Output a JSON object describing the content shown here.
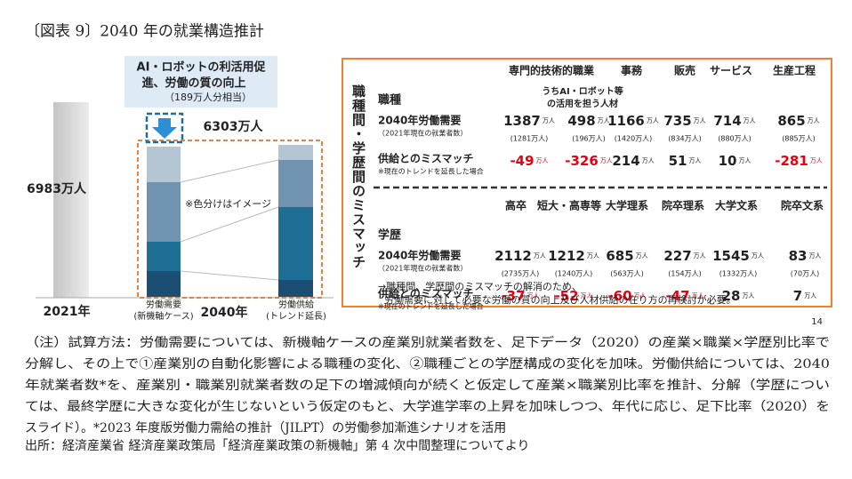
{
  "title": "〔図表 9〕2040 年の就業構造推計",
  "left_chart": {
    "callout": [
      "AI・ロボットの利活用促",
      "進、労働の質の向上"
    ],
    "callout_note": "（189万人分相当）",
    "total_2021": "6983万人",
    "total_2040": "6303万人",
    "color_note": "※色分けはイメージ",
    "year_2021": "2021年",
    "year_2040": "2040年",
    "demand_label": [
      "労働需要",
      "(新機軸ケース)"
    ],
    "supply_label": [
      "労働供給",
      "(トレンド延長)"
    ]
  },
  "side_label": "職種間・学歴間のミスマッチ",
  "table": {
    "unit": "万人",
    "occupation": {
      "label": "職種",
      "headers": [
        "専門的技術的職業",
        "事務",
        "販売",
        "サービス",
        "生産工程"
      ],
      "subheader": [
        "うちAI・ロボット等",
        "の活用を担う人材"
      ],
      "demand_label": "2040年労働需要",
      "demand_sublabel": "（2021年現在の就業者数）",
      "demand": [
        "1387",
        "498",
        "1166",
        "735",
        "714",
        "865"
      ],
      "current": [
        "(1281万人)",
        "(196万人)",
        "(1420万人)",
        "(834万人)",
        "(880万人)",
        "(885万人)"
      ],
      "mismatch_label": "供給とのミスマッチ",
      "mismatch_sublabel": "※現在のトレンドを延長した場合",
      "mismatch": [
        "-49",
        "-326",
        "214",
        "51",
        "10",
        "-281"
      ]
    },
    "education": {
      "label": "学歴",
      "headers": [
        "高卒",
        "短大・高専等",
        "大学理系",
        "院卒理系",
        "大学文系",
        "院卒文系"
      ],
      "demand_label": "2040年労働需要",
      "demand_sublabel": "（2021年現在の就業者数）",
      "demand": [
        "2112",
        "1212",
        "685",
        "227",
        "1545",
        "83"
      ],
      "current": [
        "(2735万人)",
        "(1240万人)",
        "(563万人)",
        "(154万人)",
        "(1332万人)",
        "(70万人)"
      ],
      "mismatch_label": "供給とのミスマッチ",
      "mismatch_sublabel": "※現在のトレンドを延長した場合",
      "mismatch": [
        "-37",
        "-52",
        "-60",
        "-47",
        "28",
        "7"
      ]
    },
    "conclusion": [
      "→職種間、学歴間のミスマッチの解消のため、",
      "労働需要に対して必要な労働の質の向上及び人材供給の在り方の再検討が必要。"
    ]
  },
  "page_number": "14",
  "notes": [
    "（注）試算方法：労働需要については、新機軸ケースの産業別就業者数を、足下データ（2020）の産業×職業×学歴別比率で",
    "分解し、その上で①産業別の自動化影響による職種の変化、②職種ごとの学歴構成の変化を加味。労働供給については、2040",
    "年就業者数*を、産業別・職業別就業者数の足下の増減傾向が続くと仮定して産業×職業別比率を推計、分解（学歴につい",
    "ては、最終学歴に大きな変化が生じないという仮定のもと、大学進学率の上昇を加味しつつ、年代に応じ、足下比率（2020）を",
    "スライド）。*2023 年度版労働力需給の推計（JILPT）の労働参加漸進シナリオを活用"
  ],
  "source": "出所：経済産業省 経済産業政策局「経済産業政策の新機軸」第 4 次中間整理についてより"
}
